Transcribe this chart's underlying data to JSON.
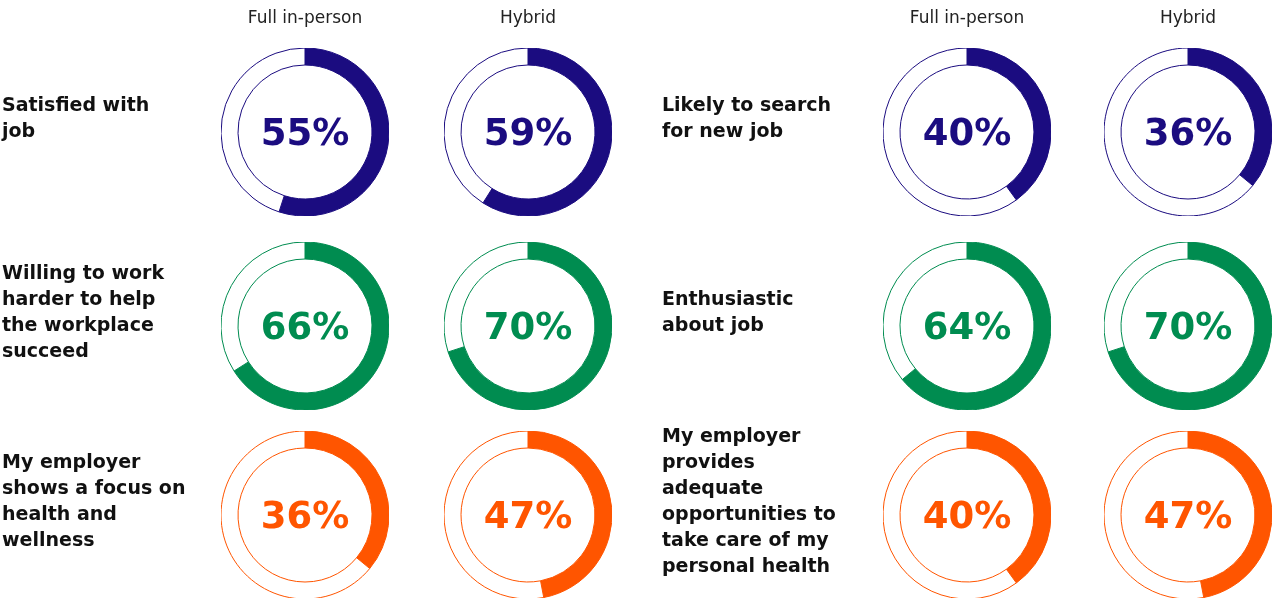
{
  "chart_data": [
    {
      "type": "donut",
      "title": "Full in-person",
      "ylabel": "Satisfied with job",
      "categories": [
        null,
        null
      ],
      "values": [
        55,
        45
      ],
      "colors": [
        "#1b0c80",
        "#ffffff"
      ],
      "annotations": [
        "55%"
      ]
    },
    {
      "type": "donut",
      "title": "Hybrid",
      "categories": [
        null,
        null
      ],
      "values": [
        59,
        41
      ],
      "colors": [
        "#1b0c80",
        "#ffffff"
      ],
      "annotations": [
        "59%"
      ]
    },
    {
      "type": "donut",
      "title": "Full in-person",
      "ylabel": "Likely to search for new job",
      "categories": [
        null,
        null
      ],
      "values": [
        40,
        60
      ],
      "colors": [
        "#1b0c80",
        "#ffffff"
      ],
      "annotations": [
        "40%"
      ]
    },
    {
      "type": "donut",
      "title": "Hybrid",
      "categories": [
        null,
        null
      ],
      "values": [
        36,
        64
      ],
      "colors": [
        "#1b0c80",
        "#ffffff"
      ],
      "annotations": [
        "36%"
      ]
    },
    {
      "type": "donut",
      "ylabel": "Willing to work harder to help the workplace succeed",
      "categories": [
        null,
        null
      ],
      "values": [
        66,
        34
      ],
      "colors": [
        "#008c50",
        "#ffffff"
      ],
      "annotations": [
        "66%"
      ]
    },
    {
      "type": "donut",
      "categories": [
        null,
        null
      ],
      "values": [
        70,
        30
      ],
      "colors": [
        "#008c50",
        "#ffffff"
      ],
      "annotations": [
        "70%"
      ]
    },
    {
      "type": "donut",
      "ylabel": "Enthusiastic about job",
      "categories": [
        null,
        null
      ],
      "values": [
        64,
        36
      ],
      "colors": [
        "#008c50",
        "#ffffff"
      ],
      "annotations": [
        "64%"
      ]
    },
    {
      "type": "donut",
      "categories": [
        null,
        null
      ],
      "values": [
        70,
        30
      ],
      "colors": [
        "#008c50",
        "#ffffff"
      ],
      "annotations": [
        "70%"
      ]
    },
    {
      "type": "donut",
      "ylabel": "My employer shows a focus on health and wellness",
      "categories": [
        null,
        null
      ],
      "values": [
        36,
        64
      ],
      "colors": [
        "#ff5500",
        "#ffffff"
      ],
      "annotations": [
        "36%"
      ]
    },
    {
      "type": "donut",
      "categories": [
        null,
        null
      ],
      "values": [
        47,
        53
      ],
      "colors": [
        "#ff5500",
        "#ffffff"
      ],
      "annotations": [
        "47%"
      ]
    },
    {
      "type": "donut",
      "ylabel": "My employer provides adequate opportunities to take care of my personal health",
      "categories": [
        null,
        null
      ],
      "values": [
        40,
        60
      ],
      "colors": [
        "#ff5500",
        "#ffffff"
      ],
      "annotations": [
        "40%"
      ]
    },
    {
      "type": "donut",
      "categories": [
        null,
        null
      ],
      "values": [
        47,
        53
      ],
      "colors": [
        "#ff5500",
        "#ffffff"
      ],
      "annotations": [
        "47%"
      ]
    }
  ]
}
